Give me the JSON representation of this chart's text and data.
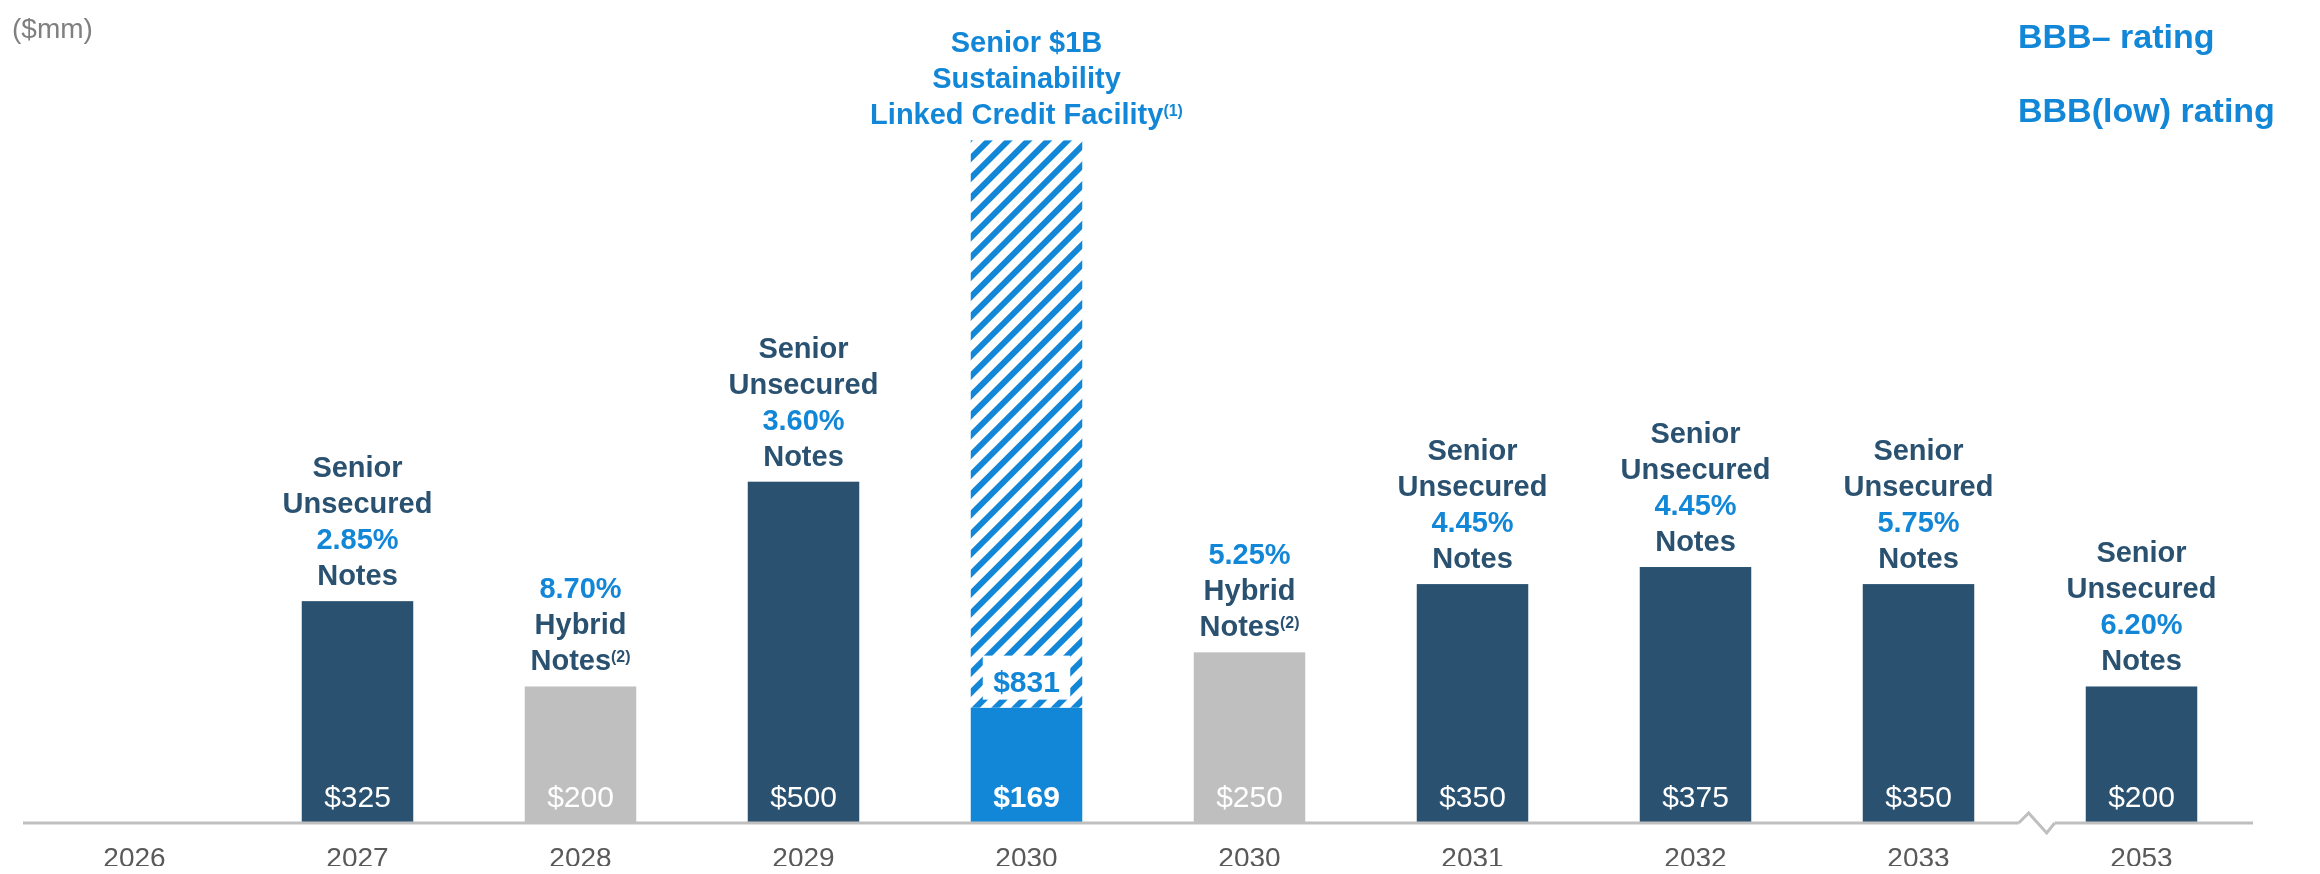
{
  "chart_data": {
    "type": "bar",
    "ylabel": "($mm)",
    "stacked": true,
    "categories": [
      "2026",
      "2027",
      "2028",
      "2029",
      "2030",
      "2030",
      "2031",
      "2032",
      "2033",
      "2053"
    ],
    "tick_labels": "x",
    "series": [
      {
        "colors": [
          null,
          "#2a5270",
          "#bfbfbf",
          "#2a5270",
          "#1287d8",
          "#bfbfbf",
          "#2a5270",
          "#2a5270",
          "#2a5270",
          "#2a5270"
        ],
        "values": [
          null,
          325,
          200,
          500,
          169,
          250,
          350,
          375,
          350,
          200
        ],
        "value_labels": [
          null,
          "$325",
          "$200",
          "$500",
          "$169",
          "$250",
          "$350",
          "$375",
          "$350",
          "$200"
        ]
      },
      {
        "color": "#1287d8",
        "values": [
          null,
          null,
          null,
          null,
          831,
          null,
          null,
          null,
          null,
          null
        ],
        "value_labels": [
          null,
          null,
          null,
          null,
          "$831",
          null,
          null,
          null,
          null,
          null
        ]
      }
    ],
    "annotations": [
      {
        "text": "Senior\nUnsecured\n2.85%\nNotes",
        "x": "2027",
        "y": 325
      },
      {
        "text": "8.70%\nHybrid\nNotes$^{(2)}$",
        "x": "2028",
        "y": 200
      },
      {
        "text": "Senior\nUnsecured\n3.60%\nNotes",
        "x": "2029",
        "y": 500
      },
      {
        "text": "Senior $1B\nSustainability\nLinked Credit Facility$^{(1)}$",
        "x": "2030",
        "y": 1000
      },
      "5.25%\nHybrid\nNotes$^{(2)}$",
      {
        "text": "Senior\nUnsecured\n4.45%\nNotes",
        "x": "2031",
        "y": 350
      },
      {
        "text": "Senior\nUnsecured\n4.45%\nNotes",
        "x": "2032",
        "y": 375
      },
      {
        "text": "Senior\nUnsecured\n5.75%\nNotes",
        "x": "2033",
        "y": 350
      },
      {
        "text": "Senior\nUnsecured\n6.20%\nNotes",
        "x": "2053",
        "y": 200
      },
      "BBB– rating",
      "BBB(low) rating"
    ]
  }
}
